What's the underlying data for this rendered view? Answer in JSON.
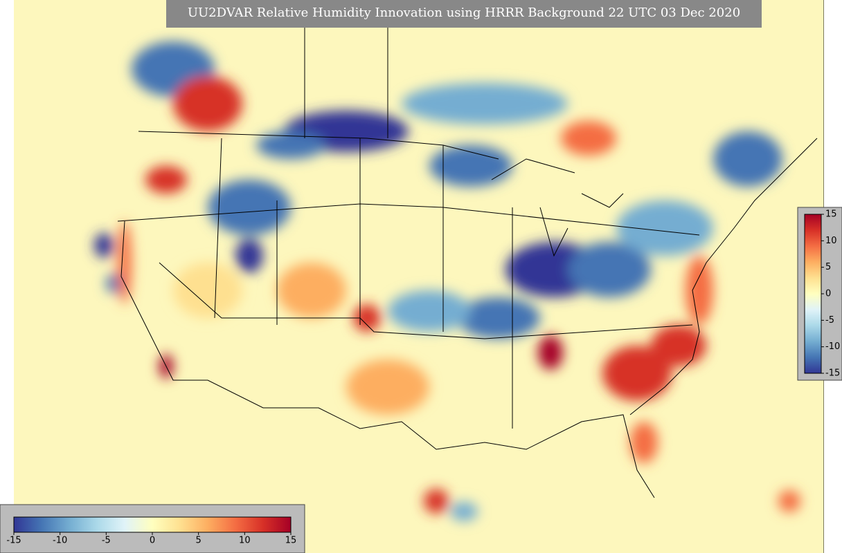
{
  "title": "UU2DVAR Relative Humidity Innovation using HRRR Background 22 UTC 03 Dec 2020",
  "colorbar": {
    "range": [
      -15,
      15
    ],
    "ticks": [
      -15,
      -10,
      -5,
      0,
      5,
      10,
      15
    ],
    "colors": [
      "#313695",
      "#4575b4",
      "#74add1",
      "#abd9e9",
      "#e0f3f8",
      "#ffffbf",
      "#fee090",
      "#fdae61",
      "#f46d43",
      "#d73027",
      "#a50026"
    ]
  }
}
